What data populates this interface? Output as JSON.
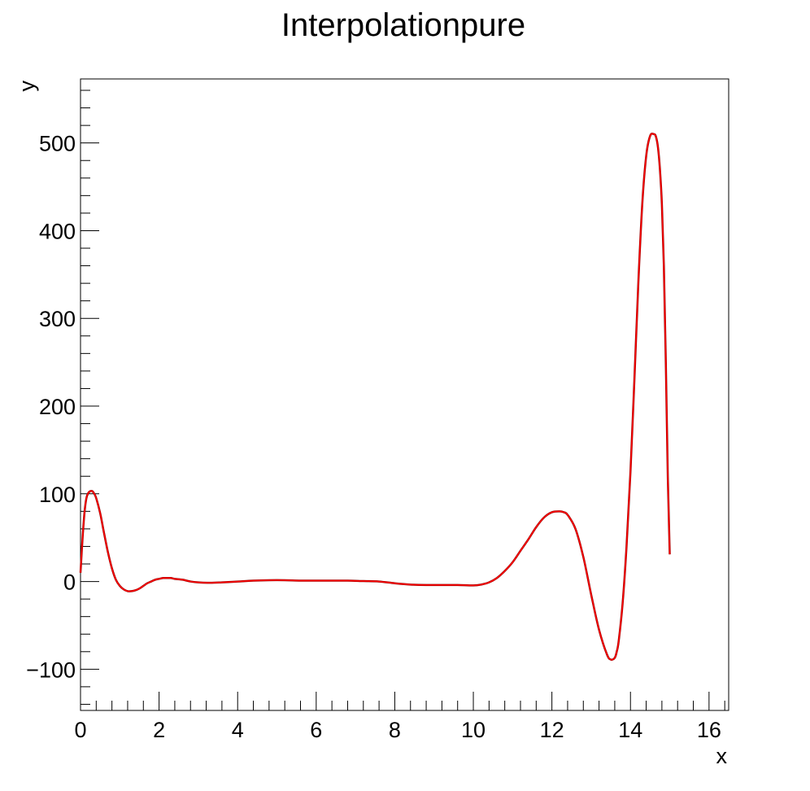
{
  "chart_data": {
    "type": "line",
    "title": "Interpolationpure",
    "xlabel": "x",
    "ylabel": "y",
    "xlim": [
      0,
      16.5
    ],
    "ylim": [
      -147,
      573
    ],
    "x_ticks": [
      0,
      2,
      4,
      6,
      8,
      10,
      12,
      14,
      16
    ],
    "y_ticks": [
      -100,
      0,
      100,
      200,
      300,
      400,
      500
    ],
    "x_tick_labels": [
      "0",
      "2",
      "4",
      "6",
      "8",
      "10",
      "12",
      "14",
      "16"
    ],
    "y_tick_labels": [
      "−100",
      "0",
      "100",
      "200",
      "300",
      "400",
      "500"
    ],
    "x_minor_step": 0.4,
    "y_minor_step": 20,
    "grid": false,
    "colors": {
      "curve": "#ff0000",
      "curve_shadow": "#8b0000",
      "axes": "#000000"
    },
    "series": [
      {
        "x": [
          0,
          0.05,
          0.1,
          0.15,
          0.2,
          0.25,
          0.3,
          0.35,
          0.4,
          0.5,
          0.6,
          0.7,
          0.8,
          0.9,
          1.0,
          1.1,
          1.2,
          1.3,
          1.4,
          1.5,
          1.6,
          1.7,
          1.8,
          1.9,
          2.0,
          2.1,
          2.2,
          2.3,
          2.4,
          2.6,
          2.8,
          3.0,
          3.3,
          3.6,
          4.0,
          4.4,
          4.8,
          5.2,
          5.6,
          6.0,
          6.4,
          6.8,
          7.2,
          7.6,
          8.0,
          8.4,
          8.8,
          9.2,
          9.6,
          10.0,
          10.2,
          10.4,
          10.6,
          10.8,
          11.0,
          11.2,
          11.4,
          11.6,
          11.8,
          12.0,
          12.2,
          12.3,
          12.4,
          12.6,
          12.8,
          13.0,
          13.2,
          13.4,
          13.5,
          13.6,
          13.65,
          13.7,
          13.8,
          13.9,
          14.0,
          14.1,
          14.2,
          14.3,
          14.4,
          14.5,
          14.6,
          14.65,
          14.7,
          14.75,
          14.8,
          14.85,
          14.9,
          14.95,
          15.0
        ],
        "y": [
          10,
          48,
          78,
          95,
          101,
          103,
          103,
          100,
          95,
          78,
          55,
          33,
          15,
          2,
          -5,
          -9,
          -11,
          -11,
          -10,
          -8,
          -5,
          -2,
          0,
          2,
          3,
          4,
          4,
          4,
          3,
          2,
          0,
          -1,
          -1.5,
          -1,
          0,
          1,
          1.5,
          1.5,
          1,
          1,
          1,
          1,
          0.5,
          0,
          -2,
          -3.5,
          -4,
          -4,
          -4,
          -4.5,
          -3.5,
          -1,
          4,
          12,
          22,
          35,
          48,
          62,
          73,
          79,
          80,
          79,
          76,
          60,
          28,
          -15,
          -55,
          -83,
          -89,
          -87,
          -80,
          -68,
          -25,
          40,
          125,
          230,
          340,
          430,
          485,
          508,
          510,
          507,
          495,
          470,
          430,
          360,
          250,
          120,
          31
        ]
      }
    ]
  }
}
